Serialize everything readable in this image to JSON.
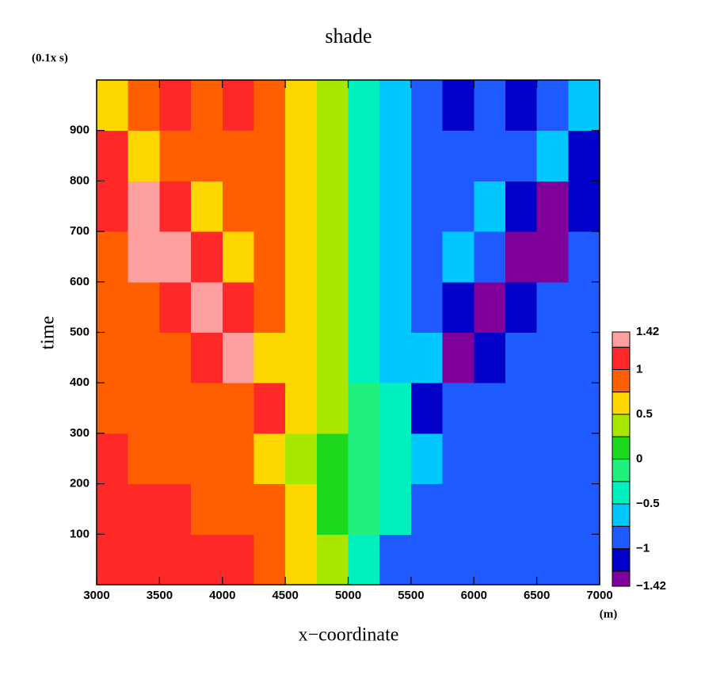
{
  "chart_data": {
    "type": "contour",
    "title": "shade",
    "y_units": "(0.1x s)",
    "y_label": "time",
    "x_label": "x−coordinate",
    "x_units": "(m)",
    "xlim": [
      3000,
      7000
    ],
    "ylim": [
      0,
      1000
    ],
    "xticks": [
      3000,
      3500,
      4000,
      4500,
      5000,
      5500,
      6000,
      6500,
      7000
    ],
    "yticks": [
      100,
      200,
      300,
      400,
      500,
      600,
      700,
      800,
      900
    ],
    "x": [
      3125,
      3375,
      3625,
      3875,
      4125,
      4375,
      4625,
      4875,
      5125,
      5375,
      5625,
      5875,
      6125,
      6375,
      6625,
      6875
    ],
    "y": [
      50,
      150,
      250,
      350,
      450,
      550,
      650,
      750,
      850,
      950
    ],
    "z": [
      [
        1.05,
        1.05,
        1.05,
        1.05,
        1.05,
        0.85,
        0.7,
        0.3,
        -0.3,
        -0.8,
        -0.85,
        -0.85,
        -0.85,
        -0.85,
        -0.85,
        -0.85
      ],
      [
        1.05,
        1.05,
        1.05,
        0.9,
        0.85,
        0.8,
        0.6,
        0.15,
        -0.15,
        -0.5,
        -0.8,
        -0.85,
        -0.85,
        -0.85,
        -0.85,
        -0.85
      ],
      [
        1.05,
        0.95,
        0.85,
        0.85,
        0.85,
        0.7,
        0.35,
        0.1,
        -0.1,
        -0.35,
        -0.7,
        -0.85,
        -0.85,
        -0.85,
        -0.85,
        -0.85
      ],
      [
        0.9,
        0.85,
        0.85,
        0.85,
        0.9,
        1.1,
        0.6,
        0.3,
        -0.2,
        -0.5,
        -1.1,
        -0.9,
        -0.85,
        -0.85,
        -0.85,
        -0.85
      ],
      [
        0.85,
        0.85,
        0.85,
        1.05,
        1.3,
        0.6,
        0.6,
        0.3,
        -0.3,
        -0.6,
        -0.65,
        -1.3,
        -1.05,
        -0.85,
        -0.85,
        -0.85
      ],
      [
        0.85,
        0.85,
        1.05,
        1.3,
        1.05,
        0.85,
        0.6,
        0.3,
        -0.3,
        -0.6,
        -0.85,
        -1.05,
        -1.3,
        -1.05,
        -0.85,
        -0.85
      ],
      [
        0.95,
        1.3,
        1.3,
        1.0,
        0.6,
        0.85,
        0.6,
        0.35,
        -0.35,
        -0.6,
        -0.85,
        -0.65,
        -1.0,
        -1.3,
        -1.3,
        -0.95
      ],
      [
        1.1,
        1.3,
        1.05,
        0.6,
        0.85,
        0.85,
        0.6,
        0.35,
        -0.35,
        -0.6,
        -0.85,
        -0.85,
        -0.6,
        -1.05,
        -1.3,
        -1.1
      ],
      [
        1.05,
        0.6,
        0.85,
        0.85,
        0.9,
        0.85,
        0.6,
        0.35,
        -0.35,
        -0.6,
        -0.85,
        -0.9,
        -0.85,
        -0.85,
        -0.6,
        -1.05
      ],
      [
        0.6,
        0.9,
        1.05,
        0.85,
        1.05,
        0.85,
        0.6,
        0.35,
        -0.35,
        -0.6,
        -0.85,
        -1.05,
        -0.85,
        -1.05,
        -0.85,
        -0.6
      ]
    ],
    "levels": [
      -1.42,
      -1.25,
      -1,
      -0.75,
      -0.5,
      -0.25,
      0,
      0.25,
      0.5,
      0.75,
      1,
      1.25,
      1.42
    ],
    "colors": [
      "#80009c",
      "#0000c8",
      "#1e5aff",
      "#00c8ff",
      "#00f0c0",
      "#20f07c",
      "#1ed81e",
      "#a8e800",
      "#ffd700",
      "#ff5f00",
      "#ff2828",
      "#ffa0a0"
    ],
    "colorbar_ticks": [
      {
        "value": -1.42,
        "label": "−1.42"
      },
      {
        "value": -1,
        "label": "−1"
      },
      {
        "value": -0.5,
        "label": "−0.5"
      },
      0,
      0.5,
      1,
      1.42
    ]
  }
}
